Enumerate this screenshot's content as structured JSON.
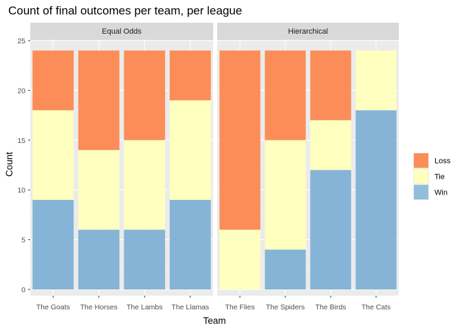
{
  "chart_data": {
    "type": "bar",
    "stacked": true,
    "title": "Count of final outcomes per team, per league",
    "xlabel": "Team",
    "ylabel": "Count",
    "ylim": [
      0,
      25
    ],
    "yticks": [
      0,
      5,
      10,
      15,
      20,
      25
    ],
    "grid": true,
    "legend_position": "right",
    "legend": [
      {
        "name": "Loss",
        "color": "#fc8d59"
      },
      {
        "name": "Tie",
        "color": "#ffffbf"
      },
      {
        "name": "Win",
        "color": "#91bfdb"
      }
    ],
    "colors": {
      "Loss": "#fc8d59",
      "Tie": "#ffffbf",
      "Win": "#85b4d6",
      "panel_bg": "#ebebeb",
      "strip_bg": "#d9d9d9"
    },
    "panels": [
      {
        "label": "Equal Odds",
        "categories": [
          "The Goats",
          "The Horses",
          "The Lambs",
          "The Llamas"
        ],
        "series": [
          {
            "name": "Win",
            "values": [
              9,
              6,
              6,
              9
            ]
          },
          {
            "name": "Tie",
            "values": [
              9,
              8,
              9,
              10
            ]
          },
          {
            "name": "Loss",
            "values": [
              6,
              10,
              9,
              5
            ]
          }
        ]
      },
      {
        "label": "Hierarchical",
        "categories": [
          "The Flies",
          "The Spiders",
          "The Birds",
          "The Cats"
        ],
        "series": [
          {
            "name": "Win",
            "values": [
              0,
              4,
              12,
              18
            ]
          },
          {
            "name": "Tie",
            "values": [
              6,
              11,
              5,
              6
            ]
          },
          {
            "name": "Loss",
            "values": [
              18,
              9,
              7,
              0
            ]
          }
        ]
      }
    ]
  }
}
